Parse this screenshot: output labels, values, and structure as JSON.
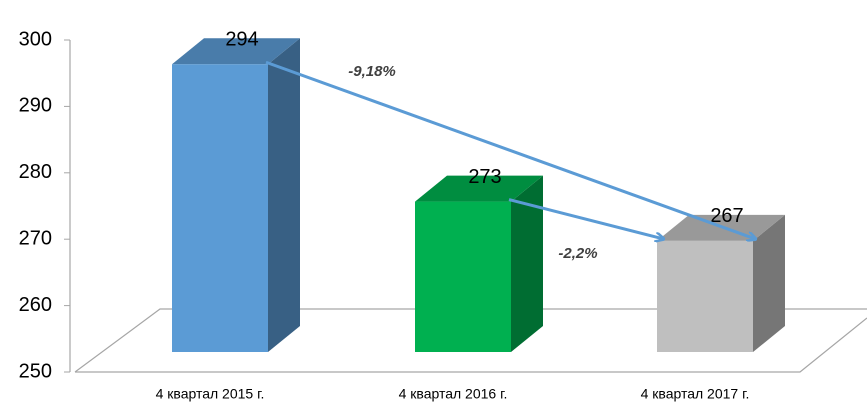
{
  "chart_data": {
    "type": "bar3d",
    "categories": [
      "4 квартал 2015 г.",
      "4 квартал 2016 г.",
      "4 квартал 2017 г."
    ],
    "values": [
      294,
      273,
      267
    ],
    "colors": [
      "#5b9bd5",
      "#00b050",
      "#bfbfbf"
    ],
    "ylim": [
      250,
      300
    ],
    "yticks": [
      250,
      260,
      270,
      280,
      290,
      300
    ],
    "annotations": [
      "-9,18%",
      "-2,2%"
    ]
  }
}
